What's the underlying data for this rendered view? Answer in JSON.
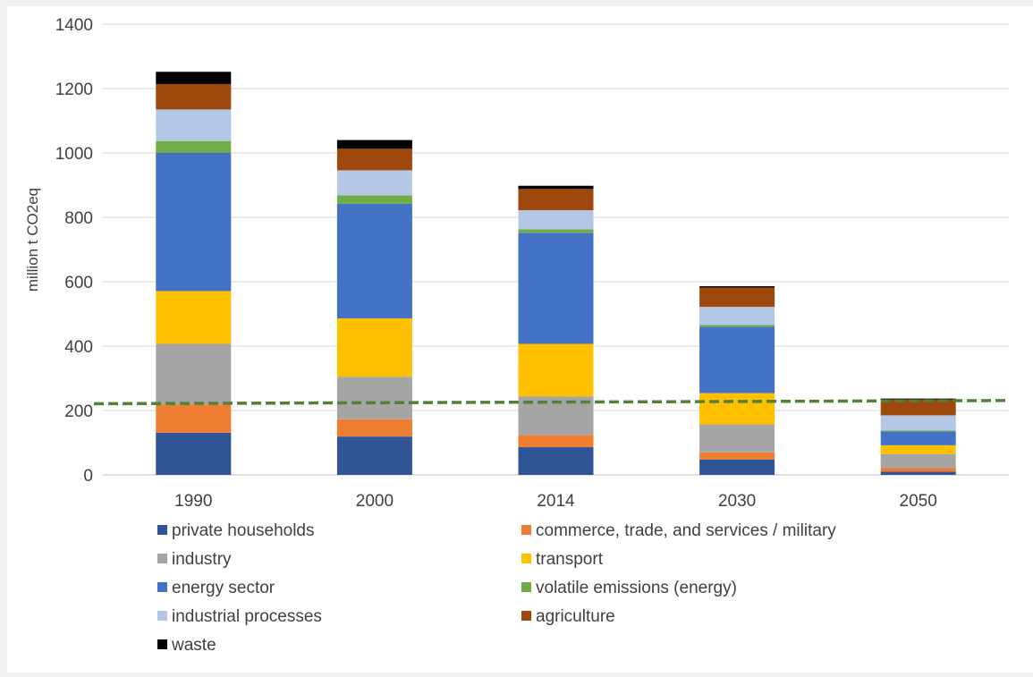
{
  "chart_data": {
    "type": "bar",
    "stacked": true,
    "ylabel": "million t CO2eq",
    "ylim": [
      0,
      1400
    ],
    "yticks": [
      0,
      200,
      400,
      600,
      800,
      1000,
      1200,
      1400
    ],
    "grid": true,
    "legend_position": "bottom",
    "categories": [
      "1990",
      "2000",
      "2014",
      "2030",
      "2050"
    ],
    "series": [
      {
        "name": "private households",
        "color": "#2f5597",
        "values": [
          131,
          119,
          86,
          48,
          10
        ]
      },
      {
        "name": "commerce, trade, and services / military",
        "color": "#ed7d31",
        "values": [
          88,
          54,
          38,
          22,
          12
        ]
      },
      {
        "name": "industry",
        "color": "#a5a5a5",
        "values": [
          188,
          132,
          120,
          87,
          43
        ]
      },
      {
        "name": "transport",
        "color": "#ffc000",
        "values": [
          164,
          181,
          163,
          97,
          27
        ]
      },
      {
        "name": "energy sector",
        "color": "#4472c4",
        "values": [
          429,
          356,
          345,
          206,
          43
        ]
      },
      {
        "name": "volatile emissions (energy)",
        "color": "#70ad47",
        "values": [
          37,
          26,
          11,
          6,
          3
        ]
      },
      {
        "name": "industrial processes",
        "color": "#b4c7e7",
        "values": [
          98,
          78,
          59,
          56,
          47
        ]
      },
      {
        "name": "agriculture",
        "color": "#9e480e",
        "values": [
          79,
          67,
          66,
          60,
          49
        ]
      },
      {
        "name": "waste",
        "color": "#000000",
        "values": [
          38,
          27,
          10,
          4,
          3
        ]
      }
    ],
    "reference_line": {
      "style": "dashed",
      "color": "#548235",
      "from_value": 221,
      "to_value": 231
    }
  }
}
